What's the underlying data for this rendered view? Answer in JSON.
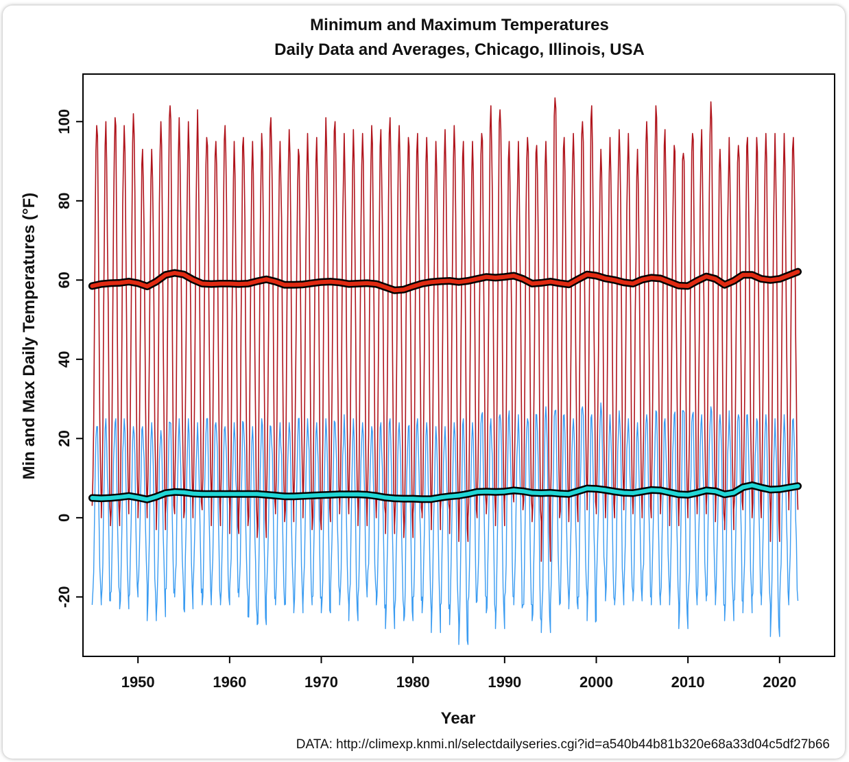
{
  "chart_data": {
    "type": "line",
    "title": "Minimum and Maximum Temperatures",
    "subtitle": "Daily Data and Averages, Chicago, Illinois, USA",
    "xlabel": "Year",
    "ylabel": "Min and Max Daily Temperatures (°F)",
    "source": "DATA: http://climexp.knmi.nl/selectdailyseries.cgi?id=a540b44b81b320e68a33d04c5df27b66",
    "xlim": [
      1944,
      2026
    ],
    "ylim": [
      -35,
      112
    ],
    "x_ticks": [
      1950,
      1960,
      1970,
      1980,
      1990,
      2000,
      2010,
      2020
    ],
    "y_ticks": [
      -20,
      0,
      20,
      40,
      60,
      80,
      100
    ],
    "grid": false,
    "legend": "none",
    "daily_max_envelope": {
      "years": [
        1945,
        1946,
        1947,
        1948,
        1949,
        1950,
        1951,
        1952,
        1953,
        1954,
        1955,
        1956,
        1957,
        1958,
        1959,
        1960,
        1961,
        1962,
        1963,
        1964,
        1965,
        1966,
        1967,
        1968,
        1969,
        1970,
        1971,
        1972,
        1973,
        1974,
        1975,
        1976,
        1977,
        1978,
        1979,
        1980,
        1981,
        1982,
        1983,
        1984,
        1985,
        1986,
        1987,
        1988,
        1989,
        1990,
        1991,
        1992,
        1993,
        1994,
        1995,
        1996,
        1997,
        1998,
        1999,
        2000,
        2001,
        2002,
        2003,
        2004,
        2005,
        2006,
        2007,
        2008,
        2009,
        2010,
        2011,
        2012,
        2013,
        2014,
        2015,
        2016,
        2017,
        2018,
        2019,
        2020,
        2021
      ],
      "summer_peak": [
        99,
        100,
        101,
        99,
        102,
        93,
        93,
        100,
        104,
        101,
        100,
        103,
        96,
        95,
        99,
        95,
        96,
        95,
        97,
        101,
        95,
        98,
        93,
        97,
        96,
        101,
        100,
        97,
        98,
        97,
        99,
        98,
        101,
        99,
        96,
        97,
        96,
        95,
        98,
        99,
        95,
        95,
        97,
        104,
        103,
        95,
        95,
        96,
        94,
        95,
        106,
        96,
        97,
        100,
        104,
        93,
        96,
        98,
        97,
        93,
        100,
        104,
        98,
        94,
        92,
        97,
        98,
        105,
        93,
        96,
        94,
        96,
        96,
        97,
        97,
        97,
        96
      ],
      "winter_trough": [
        3,
        0,
        -2,
        1,
        4,
        0,
        2,
        -3,
        1,
        6,
        0,
        2,
        5,
        -2,
        3,
        -4,
        0,
        -2,
        -5,
        2,
        1,
        -1,
        4,
        0,
        -3,
        -1,
        3,
        1,
        2,
        -2,
        0,
        1,
        -4,
        -2,
        -5,
        1,
        0,
        -3,
        2,
        -4,
        -6,
        0,
        3,
        1,
        -2,
        4,
        5,
        2,
        -1,
        -11,
        3,
        0,
        -1,
        5,
        2,
        1,
        0,
        3,
        2,
        1,
        0,
        4,
        1,
        -2,
        0,
        2,
        1,
        3,
        -1,
        -3,
        2,
        3,
        0,
        1,
        -6,
        4,
        2
      ]
    },
    "daily_min_envelope": {
      "years": [
        1945,
        1946,
        1947,
        1948,
        1949,
        1950,
        1951,
        1952,
        1953,
        1954,
        1955,
        1956,
        1957,
        1958,
        1959,
        1960,
        1961,
        1962,
        1963,
        1964,
        1965,
        1966,
        1967,
        1968,
        1969,
        1970,
        1971,
        1972,
        1973,
        1974,
        1975,
        1976,
        1977,
        1978,
        1979,
        1980,
        1981,
        1982,
        1983,
        1984,
        1985,
        1986,
        1987,
        1988,
        1989,
        1990,
        1991,
        1992,
        1993,
        1994,
        1995,
        1996,
        1997,
        1998,
        1999,
        2000,
        2001,
        2002,
        2003,
        2004,
        2005,
        2006,
        2007,
        2008,
        2009,
        2010,
        2011,
        2012,
        2013,
        2014,
        2015,
        2016,
        2017,
        2018,
        2019,
        2020,
        2021
      ],
      "summer_peak": [
        23,
        25,
        24,
        25,
        23,
        23,
        24,
        22,
        24,
        25,
        25,
        24,
        25,
        24,
        23,
        24,
        24,
        23,
        25,
        23,
        24,
        24,
        25,
        25,
        24,
        25,
        24,
        26,
        25,
        24,
        23,
        24,
        25,
        24,
        23,
        25,
        24,
        23,
        23,
        24,
        25,
        24,
        26,
        25,
        26,
        27,
        26,
        25,
        26,
        28,
        27,
        26,
        25,
        28,
        26,
        29,
        26,
        27,
        25,
        24,
        26,
        27,
        25,
        26,
        27,
        26,
        26,
        28,
        26,
        27,
        26,
        26,
        25,
        26,
        25,
        26,
        25
      ],
      "winter_trough": [
        -22,
        -21,
        -19,
        -23,
        -20,
        -17,
        -26,
        -25,
        -18,
        -20,
        -23,
        -18,
        -22,
        -21,
        -22,
        -18,
        -20,
        -25,
        -27,
        -20,
        -22,
        -22,
        -24,
        -22,
        -20,
        -24,
        -19,
        -22,
        -26,
        -20,
        -19,
        -22,
        -28,
        -23,
        -26,
        -20,
        -24,
        -29,
        -22,
        -27,
        -32,
        -21,
        -20,
        -24,
        -28,
        -20,
        -22,
        -22,
        -26,
        -29,
        -22,
        -21,
        -23,
        -20,
        -26,
        -18,
        -21,
        -22,
        -19,
        -21,
        -20,
        -22,
        -20,
        -22,
        -28,
        -22,
        -21,
        -20,
        -22,
        -26,
        -21,
        -24,
        -20,
        -22,
        -30,
        -22,
        -21
      ]
    },
    "series": [
      {
        "name": "",
        "color": "#e02a12",
        "x": [
          1945,
          1946,
          1947,
          1948,
          1949,
          1950,
          1951,
          1952,
          1953,
          1954,
          1955,
          1956,
          1957,
          1958,
          1959,
          1960,
          1961,
          1962,
          1963,
          1964,
          1965,
          1966,
          1967,
          1968,
          1969,
          1970,
          1971,
          1972,
          1973,
          1974,
          1975,
          1976,
          1977,
          1978,
          1979,
          1980,
          1981,
          1982,
          1983,
          1984,
          1985,
          1986,
          1987,
          1988,
          1989,
          1990,
          1991,
          1992,
          1993,
          1994,
          1995,
          1996,
          1997,
          1998,
          1999,
          2000,
          2001,
          2002,
          2003,
          2004,
          2005,
          2006,
          2007,
          2008,
          2009,
          2010,
          2011,
          2012,
          2013,
          2014,
          2015,
          2016,
          2017,
          2018,
          2019,
          2020,
          2021,
          2022
        ],
        "y": [
          58.5,
          59.0,
          59.2,
          59.3,
          59.6,
          59.2,
          58.4,
          59.6,
          61.3,
          61.8,
          61.4,
          60.1,
          59.1,
          59.0,
          59.1,
          59.1,
          59.0,
          59.1,
          59.7,
          60.2,
          59.6,
          58.8,
          58.8,
          58.9,
          59.2,
          59.5,
          59.6,
          59.4,
          59.0,
          59.1,
          59.2,
          59.0,
          58.2,
          57.4,
          57.6,
          58.4,
          59.1,
          59.5,
          59.7,
          59.8,
          59.5,
          59.8,
          60.3,
          60.8,
          60.6,
          60.8,
          61.1,
          60.3,
          59.1,
          59.3,
          59.6,
          59.2,
          58.9,
          60.2,
          61.4,
          61.1,
          60.4,
          60.0,
          59.4,
          59.1,
          60.1,
          60.6,
          60.4,
          59.5,
          58.6,
          58.5,
          59.8,
          60.9,
          60.3,
          58.8,
          59.8,
          61.3,
          61.3,
          60.3,
          60.0,
          60.3,
          61.2,
          62.1
        ]
      },
      {
        "name": "",
        "color": "#21d6d6",
        "x": [
          1945,
          1946,
          1947,
          1948,
          1949,
          1950,
          1951,
          1952,
          1953,
          1954,
          1955,
          1956,
          1957,
          1958,
          1959,
          1960,
          1961,
          1962,
          1963,
          1964,
          1965,
          1966,
          1967,
          1968,
          1969,
          1970,
          1971,
          1972,
          1973,
          1974,
          1975,
          1976,
          1977,
          1978,
          1979,
          1980,
          1981,
          1982,
          1983,
          1984,
          1985,
          1986,
          1987,
          1988,
          1989,
          1990,
          1991,
          1992,
          1993,
          1994,
          1995,
          1996,
          1997,
          1998,
          1999,
          2000,
          2001,
          2002,
          2003,
          2004,
          2005,
          2006,
          2007,
          2008,
          2009,
          2010,
          2011,
          2012,
          2013,
          2014,
          2015,
          2016,
          2017,
          2018,
          2019,
          2020,
          2021,
          2022
        ],
        "y": [
          5.0,
          4.9,
          5.0,
          5.2,
          5.5,
          5.1,
          4.6,
          5.3,
          6.2,
          6.5,
          6.4,
          6.1,
          6.0,
          6.0,
          6.0,
          6.0,
          6.0,
          6.0,
          6.0,
          5.8,
          5.6,
          5.4,
          5.4,
          5.5,
          5.6,
          5.7,
          5.8,
          5.9,
          5.9,
          5.9,
          5.8,
          5.5,
          5.1,
          4.9,
          4.8,
          4.8,
          4.7,
          4.7,
          5.1,
          5.4,
          5.6,
          6.0,
          6.5,
          6.6,
          6.5,
          6.6,
          6.9,
          6.7,
          6.3,
          6.2,
          6.3,
          6.1,
          6.0,
          6.7,
          7.4,
          7.3,
          7.0,
          6.6,
          6.3,
          6.2,
          6.6,
          7.0,
          6.9,
          6.4,
          5.9,
          5.8,
          6.3,
          6.9,
          6.7,
          5.9,
          6.3,
          7.7,
          8.2,
          7.6,
          7.1,
          7.2,
          7.6,
          8.0
        ]
      }
    ]
  }
}
